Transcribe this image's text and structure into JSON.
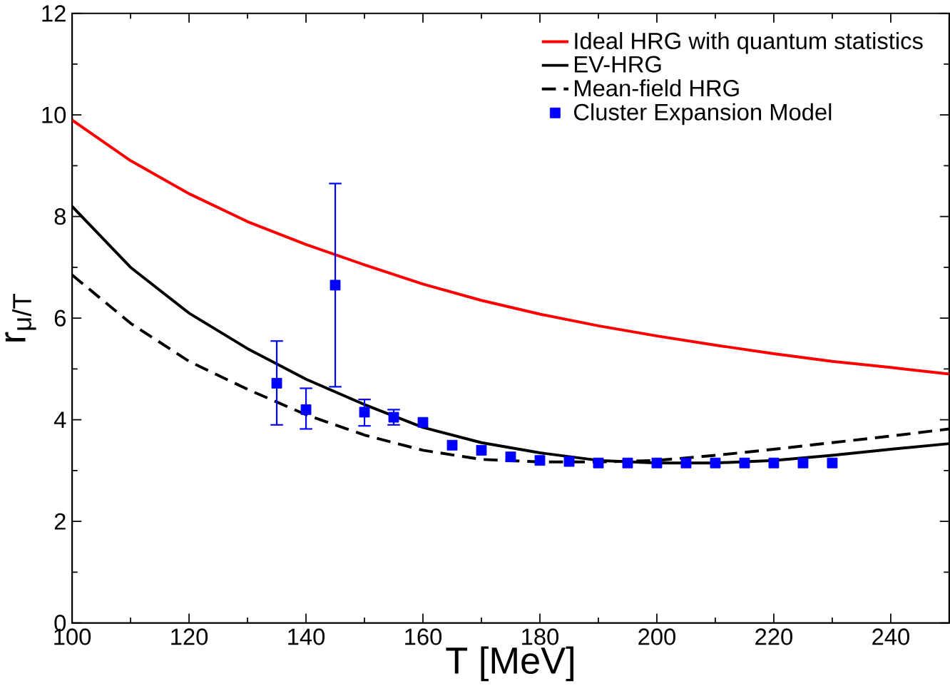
{
  "chart_data": {
    "type": "line",
    "xlabel": "T [MeV]",
    "ylabel": "r$_{μ/T}$",
    "xlim": [
      100,
      250
    ],
    "ylim": [
      0,
      12
    ],
    "xticks": [
      100,
      120,
      140,
      160,
      180,
      200,
      220,
      240
    ],
    "yticks": [
      0,
      2,
      4,
      6,
      8,
      10,
      12
    ],
    "legend": "top right",
    "grid": false,
    "series": [
      {
        "name": "Ideal HRG with quantum statistics",
        "color": "#ff0000",
        "line_style": "solid",
        "marker": "none",
        "x": [
          100,
          110,
          120,
          130,
          140,
          150,
          160,
          170,
          180,
          190,
          200,
          210,
          220,
          230,
          240,
          250
        ],
        "values": [
          9.9,
          9.1,
          8.45,
          7.9,
          7.45,
          7.05,
          6.67,
          6.35,
          6.08,
          5.85,
          5.65,
          5.47,
          5.3,
          5.15,
          5.03,
          4.9
        ]
      },
      {
        "name": "EV-HRG",
        "color": "#000000",
        "line_style": "solid",
        "marker": "none",
        "x": [
          100,
          110,
          120,
          130,
          140,
          150,
          160,
          170,
          180,
          190,
          200,
          210,
          220,
          230,
          240,
          250
        ],
        "values": [
          8.2,
          7.0,
          6.1,
          5.4,
          4.8,
          4.3,
          3.85,
          3.55,
          3.35,
          3.2,
          3.15,
          3.15,
          3.2,
          3.3,
          3.42,
          3.53
        ]
      },
      {
        "name": "Mean-field HRG",
        "color": "#000000",
        "line_style": "dashed",
        "marker": "none",
        "x": [
          100,
          110,
          120,
          130,
          140,
          150,
          160,
          170,
          180,
          190,
          200,
          210,
          220,
          230,
          240,
          250
        ],
        "values": [
          6.85,
          5.9,
          5.15,
          4.6,
          4.1,
          3.7,
          3.4,
          3.22,
          3.17,
          3.17,
          3.2,
          3.3,
          3.42,
          3.55,
          3.68,
          3.82
        ]
      },
      {
        "name": "Cluster Expansion Model",
        "type": "scatter",
        "color": "#0000ff",
        "marker": "square",
        "x": [
          135,
          140,
          145,
          150,
          155,
          160,
          165,
          170,
          175,
          180,
          185,
          190,
          195,
          200,
          205,
          210,
          215,
          220,
          225,
          230
        ],
        "values": [
          4.72,
          4.2,
          6.65,
          4.15,
          4.05,
          3.95,
          3.5,
          3.4,
          3.27,
          3.2,
          3.18,
          3.15,
          3.15,
          3.15,
          3.15,
          3.15,
          3.15,
          3.15,
          3.15,
          3.15
        ],
        "errors": [
          [
            3.9,
            5.55
          ],
          [
            3.82,
            4.62
          ],
          [
            4.65,
            8.65
          ],
          [
            3.88,
            4.4
          ],
          [
            3.9,
            4.2
          ],
          null,
          null,
          null,
          null,
          null,
          null,
          null,
          null,
          null,
          null,
          null,
          null,
          null,
          null,
          null
        ]
      }
    ]
  }
}
